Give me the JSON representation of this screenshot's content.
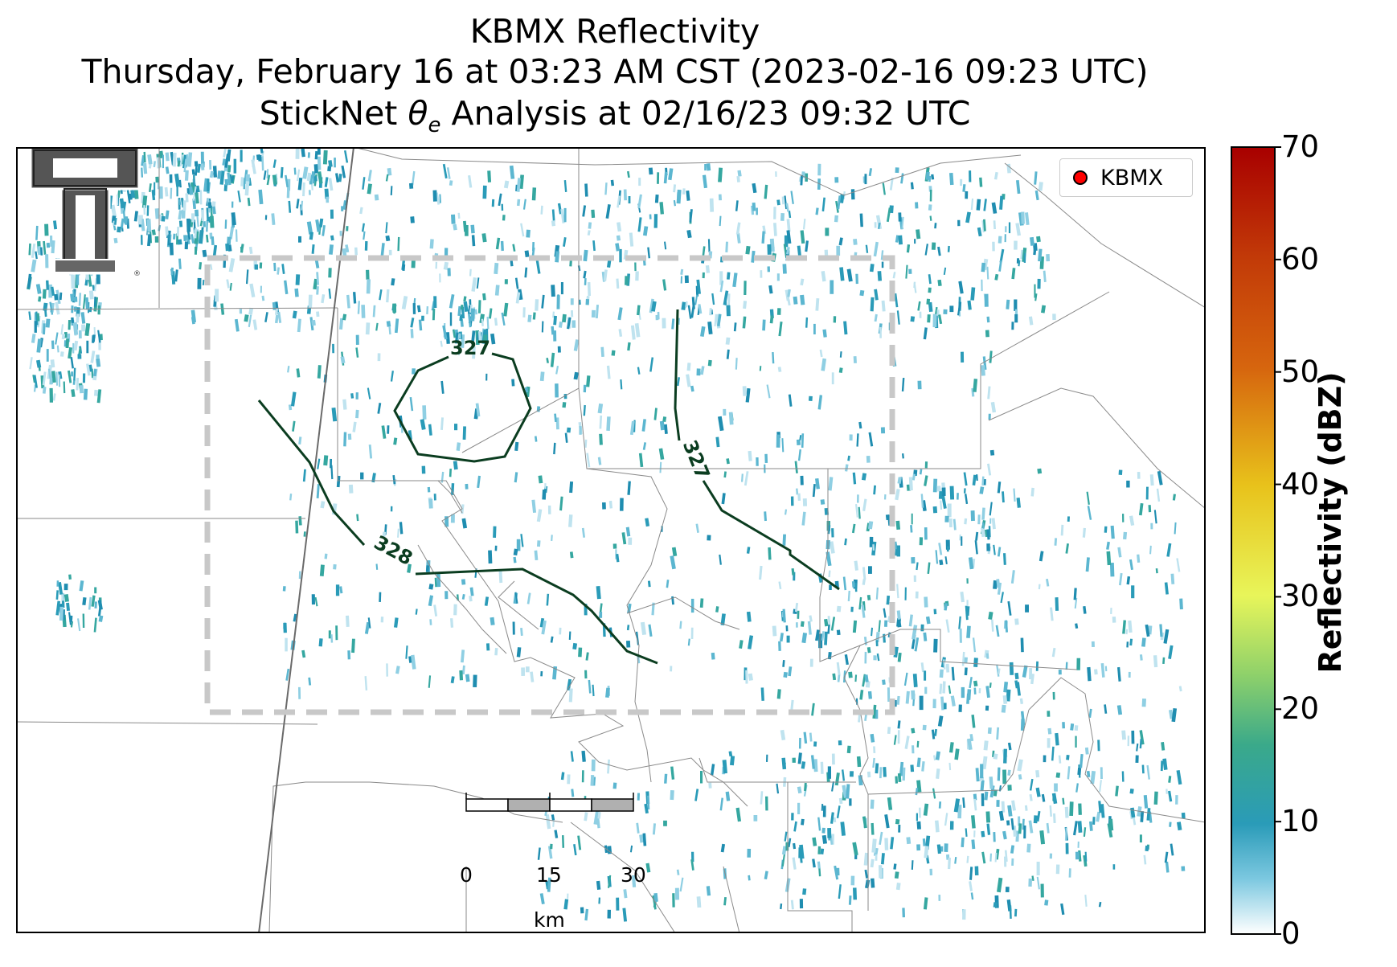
{
  "title": {
    "line1": "KBMX Reflectivity",
    "line2": "Thursday, February 16 at 03:23 AM CST (2023-02-16 09:23 UTC)",
    "line3": "StickNet θe Analysis at 02/16/23 09:32 UTC"
  },
  "legend": {
    "label": "KBMX",
    "marker_color": "#ff0000"
  },
  "contours": [
    {
      "label": "327",
      "color": "#0b3d20",
      "shape": "closed-loop"
    },
    {
      "label": "328",
      "color": "#0b3d20",
      "shape": "open-line"
    },
    {
      "label": "327",
      "color": "#0b3d20",
      "shape": "open-line"
    }
  ],
  "scale_bar": {
    "ticks": [
      "0",
      "15",
      "30"
    ],
    "unit": "km"
  },
  "colorbar": {
    "label": "Reflectivity (dBZ)",
    "ticks": [
      "0",
      "10",
      "20",
      "30",
      "40",
      "50",
      "60",
      "70"
    ],
    "range": [
      0,
      70
    ],
    "colors": [
      "#ffffff",
      "#2a9bb8",
      "#3aa98a",
      "#8fd16a",
      "#e8f55a",
      "#e8c21b",
      "#d6650e",
      "#a80000"
    ]
  },
  "analysis_box": {
    "style": "dashed",
    "color": "#c8c8c8"
  },
  "logo": {
    "name": "texas-tech-logo"
  }
}
